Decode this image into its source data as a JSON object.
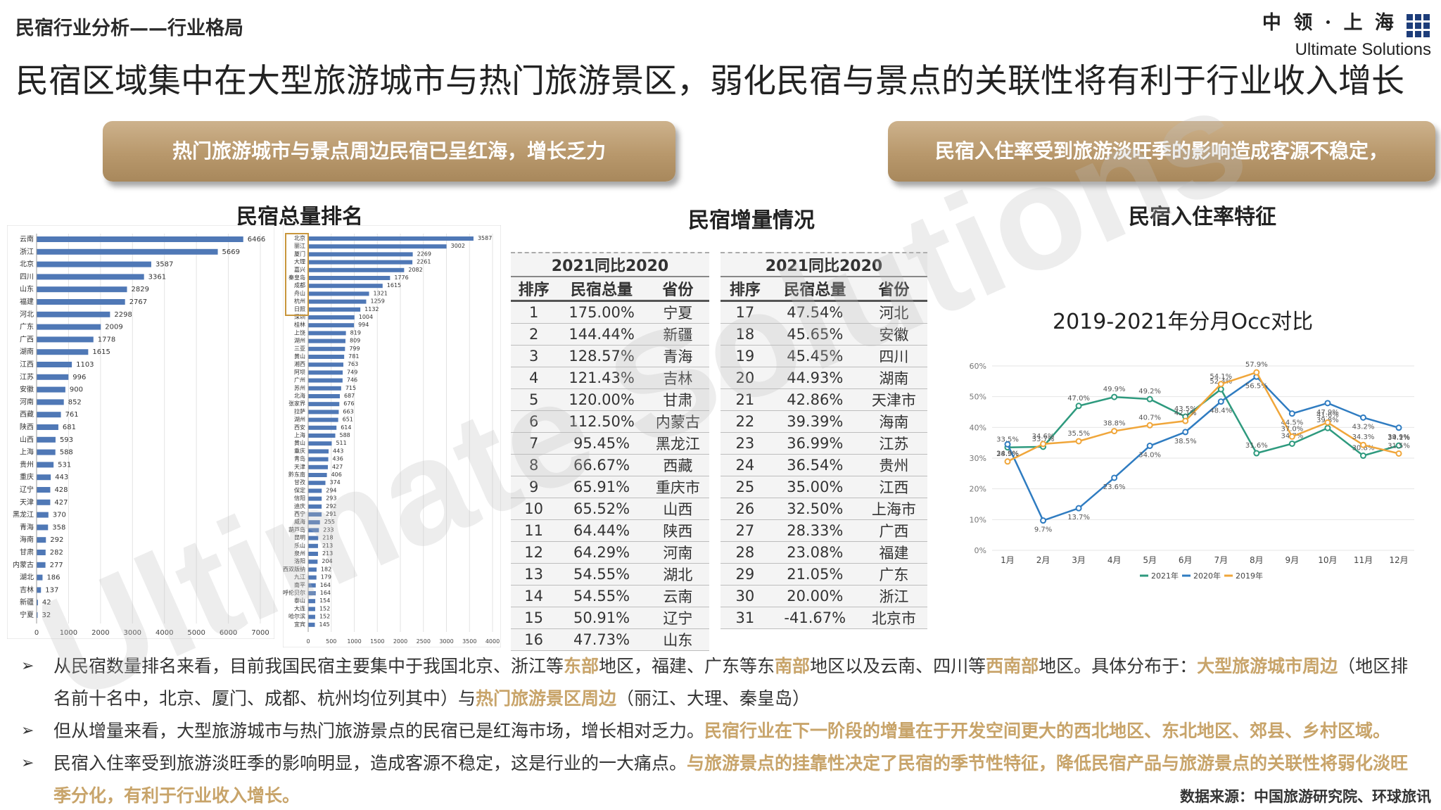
{
  "header": {
    "section_title": "民宿行业分析——行业格局",
    "main_title": "民宿区域集中在大型旅游城市与热门旅游景区，弱化民宿与景点的关联性将有利于行业收入增长",
    "logo_cn": "中 领 · 上 海",
    "logo_en": "Ultimate Solutions"
  },
  "banners": {
    "left": "热门旅游城市与景点周边民宿已呈红海，增长乏力",
    "right": "民宿入住率受到旅游淡旺季的影响造成客源不稳定，"
  },
  "sections": {
    "rank_title": "民宿总量排名",
    "increment_title": "民宿增量情况",
    "occupancy_title": "民宿入住率特征"
  },
  "chart_data": [
    {
      "type": "bar",
      "orientation": "horizontal",
      "categories": [
        "云南",
        "浙江",
        "北京",
        "四川",
        "山东",
        "福建",
        "河北",
        "广东",
        "广西",
        "湖南",
        "江西",
        "江苏",
        "安徽",
        "河南",
        "西藏",
        "陕西",
        "山西",
        "上海",
        "贵州",
        "重庆",
        "辽宁",
        "天津",
        "黑龙江",
        "青海",
        "海南",
        "甘肃",
        "内蒙古",
        "湖北",
        "吉林",
        "新疆",
        "宁夏"
      ],
      "values": [
        6466,
        5669,
        3587,
        3361,
        2829,
        2767,
        2298,
        2009,
        1778,
        1615,
        1103,
        996,
        900,
        852,
        761,
        681,
        593,
        588,
        531,
        443,
        428,
        427,
        370,
        358,
        292,
        282,
        277,
        186,
        137,
        42,
        32
      ],
      "xlim": [
        0,
        7000
      ],
      "xticks": [
        0,
        1000,
        2000,
        3000,
        4000,
        5000,
        6000,
        7000
      ],
      "color": "#4f78b6"
    },
    {
      "type": "bar",
      "orientation": "horizontal",
      "categories": [
        "北京",
        "丽江",
        "厦门",
        "大理",
        "嘉兴",
        "秦皇岛",
        "成都",
        "舟山",
        "杭州",
        "日照",
        "深圳",
        "桂林",
        "上饶",
        "湖州",
        "三亚",
        "黄山",
        "湘西",
        "阿坝",
        "广州",
        "苏州",
        "北海",
        "张家界",
        "拉萨",
        "湖州",
        "西安",
        "上海",
        "黄山",
        "重庆",
        "青岛",
        "天津",
        "黔东南",
        "甘孜",
        "保定",
        "信阳",
        "迪庆",
        "西宁",
        "威海",
        "葫芦岛",
        "昆明",
        "乐山",
        "泉州",
        "洛阳",
        "西双版纳",
        "九江",
        "南平",
        "呼伦贝尔",
        "泰山",
        "大连",
        "哈尔滨",
        "宜宾"
      ],
      "values": [
        3587,
        3002,
        2269,
        2261,
        2082,
        1776,
        1615,
        1321,
        1259,
        1132,
        1004,
        994,
        819,
        809,
        799,
        781,
        763,
        749,
        746,
        715,
        687,
        676,
        663,
        651,
        614,
        588,
        511,
        443,
        436,
        427,
        406,
        374,
        294,
        293,
        292,
        291,
        255,
        233,
        218,
        213,
        213,
        204,
        182,
        179,
        164,
        164,
        154,
        152,
        152,
        145
      ],
      "highlighted_top": 10,
      "xlim": [
        0,
        4000
      ],
      "xticks": [
        0,
        500,
        1000,
        1500,
        2000,
        2500,
        3000,
        3500,
        4000
      ],
      "color": "#4f78b6"
    },
    {
      "type": "table",
      "title": "2021同比2020",
      "columns": [
        "排序",
        "民宿总量",
        "省份"
      ],
      "rows": [
        [
          "1",
          "175.00%",
          "宁夏"
        ],
        [
          "2",
          "144.44%",
          "新疆"
        ],
        [
          "3",
          "128.57%",
          "青海"
        ],
        [
          "4",
          "121.43%",
          "吉林"
        ],
        [
          "5",
          "120.00%",
          "甘肃"
        ],
        [
          "6",
          "112.50%",
          "内蒙古"
        ],
        [
          "7",
          "95.45%",
          "黑龙江"
        ],
        [
          "8",
          "66.67%",
          "西藏"
        ],
        [
          "9",
          "65.91%",
          "重庆市"
        ],
        [
          "10",
          "65.52%",
          "山西"
        ],
        [
          "11",
          "64.44%",
          "陕西"
        ],
        [
          "12",
          "64.29%",
          "河南"
        ],
        [
          "13",
          "54.55%",
          "湖北"
        ],
        [
          "14",
          "54.55%",
          "云南"
        ],
        [
          "15",
          "50.91%",
          "辽宁"
        ],
        [
          "16",
          "47.73%",
          "山东"
        ]
      ]
    },
    {
      "type": "table",
      "title": "2021同比2020",
      "columns": [
        "排序",
        "民宿总量",
        "省份"
      ],
      "rows": [
        [
          "17",
          "47.54%",
          "河北"
        ],
        [
          "18",
          "45.65%",
          "安徽"
        ],
        [
          "19",
          "45.45%",
          "四川"
        ],
        [
          "20",
          "44.93%",
          "湖南"
        ],
        [
          "21",
          "42.86%",
          "天津市"
        ],
        [
          "22",
          "39.39%",
          "海南"
        ],
        [
          "23",
          "36.99%",
          "江苏"
        ],
        [
          "24",
          "36.54%",
          "贵州"
        ],
        [
          "25",
          "35.00%",
          "江西"
        ],
        [
          "26",
          "32.50%",
          "上海市"
        ],
        [
          "27",
          "28.33%",
          "广西"
        ],
        [
          "28",
          "23.08%",
          "福建"
        ],
        [
          "29",
          "21.05%",
          "广东"
        ],
        [
          "30",
          "20.00%",
          "浙江"
        ],
        [
          "31",
          "-41.67%",
          "北京市"
        ]
      ]
    },
    {
      "type": "line",
      "title": "2019-2021年分月Occ对比",
      "categories": [
        "1月",
        "2月",
        "3月",
        "4月",
        "5月",
        "6月",
        "7月",
        "8月",
        "9月",
        "10月",
        "11月",
        "12月"
      ],
      "ylim": [
        0,
        60
      ],
      "yticks": [
        "0%",
        "10%",
        "20%",
        "30%",
        "40%",
        "50%",
        "60%"
      ],
      "grid": true,
      "legend": "bottom",
      "series": [
        {
          "name": "2021年",
          "color": "#2e9a7e",
          "values": [
            33.5,
            33.7,
            47.0,
            49.9,
            49.2,
            43.5,
            52.4,
            31.6,
            34.7,
            39.8,
            30.8,
            34.1
          ],
          "labels": [
            "33.5%",
            "33.7%",
            "47.0%",
            "49.9%",
            "49.2%",
            "43.5%",
            "52.4%",
            "31.6%",
            "34.7%",
            "39.8%",
            "30.8%",
            "34.1%"
          ]
        },
        {
          "name": "2020年",
          "color": "#2f7cc1",
          "values": [
            34.5,
            9.7,
            13.7,
            23.6,
            34.0,
            38.5,
            48.4,
            56.5,
            44.5,
            47.9,
            43.2,
            39.9
          ],
          "labels": [
            "34.5%",
            "9.7%",
            "13.7%",
            "23.6%",
            "34.0%",
            "38.5%",
            "48.4%",
            "56.5%",
            "44.5%",
            "47.9%",
            "43.2%",
            "39.9%"
          ]
        },
        {
          "name": "2019年",
          "color": "#f0a63a",
          "values": [
            28.9,
            34.6,
            35.5,
            38.8,
            40.7,
            42.1,
            54.1,
            57.9,
            37.0,
            41.6,
            34.3,
            31.5
          ],
          "labels": [
            "28.9%",
            "34.6%",
            "35.5%",
            "38.8%",
            "40.7%",
            "42.1%",
            "54.1%",
            "57.9%",
            "37.0%",
            "41.6%",
            "34.3%",
            "31.5%"
          ]
        }
      ]
    }
  ],
  "bullets": [
    {
      "parts": [
        {
          "t": "从民宿数量排名来看，目前我国民宿主要集中于我国北京、浙江等",
          "h": false
        },
        {
          "t": "东部",
          "h": true
        },
        {
          "t": "地区，福建、广东等东",
          "h": false
        },
        {
          "t": "南部",
          "h": true
        },
        {
          "t": "地区以及云南、四川等",
          "h": false
        },
        {
          "t": "西南部",
          "h": true
        },
        {
          "t": "地区。具体分布于：",
          "h": false
        },
        {
          "t": "大型旅游城市周边",
          "h": true
        },
        {
          "t": "（地区排名前十名中，北京、厦门、成都、杭州均位列其中）与",
          "h": false
        },
        {
          "t": "热门旅游景区周边",
          "h": true
        },
        {
          "t": "（丽江、大理、秦皇岛）",
          "h": false
        }
      ]
    },
    {
      "parts": [
        {
          "t": "但从增量来看，大型旅游城市与热门旅游景点的民宿已是红海市场，增长相对乏力。",
          "h": false
        },
        {
          "t": "民宿行业在下一阶段的增量在于开发空间更大的西北地区、东北地区、郊县、乡村区域。",
          "h": true
        }
      ]
    },
    {
      "parts": [
        {
          "t": "民宿入住率受到旅游淡旺季的影响明显，造成客源不稳定，这是行业的一大痛点。",
          "h": false
        },
        {
          "t": "与旅游景点的挂靠性决定了民宿的季节性特征，降低民宿产品与旅游景点的关联性将弱化淡旺季分化，有利于行业收入增长。",
          "h": true
        }
      ]
    }
  ],
  "source": "数据来源：中国旅游研究院、环球旅讯",
  "watermark": "Ultimate Solutions",
  "colors": {
    "accent_gold": "#c8a46a",
    "bar_blue": "#4f78b6"
  }
}
